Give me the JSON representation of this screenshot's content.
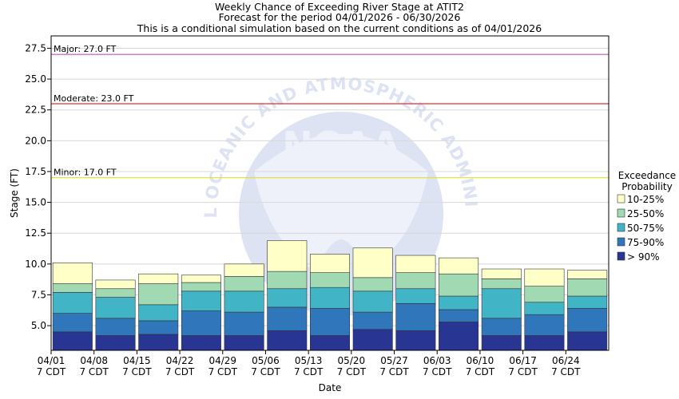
{
  "chart_data": {
    "type": "bar",
    "title_lines": [
      "Weekly Chance of Exceeding River Stage at ATIT2",
      "Forecast for the period 04/01/2026 - 06/30/2026",
      "This is a conditional simulation based on the current conditions as of 04/01/2026"
    ],
    "xlabel": "Date",
    "ylabel": "Stage (FT)",
    "ylim": [
      3.0,
      28.5
    ],
    "yticks": [
      "5.0",
      "7.5",
      "10.0",
      "12.5",
      "15.0",
      "17.5",
      "20.0",
      "22.5",
      "25.0",
      "27.5"
    ],
    "categories": [
      "04/01",
      "04/08",
      "04/15",
      "04/22",
      "04/29",
      "05/06",
      "05/13",
      "05/20",
      "05/27",
      "06/03",
      "06/10",
      "06/17",
      "06/24"
    ],
    "tick_sublabel": "7 CDT",
    "band_edges": [
      [
        4.5,
        6.0,
        7.7,
        8.4,
        10.1
      ],
      [
        4.2,
        5.6,
        7.3,
        8.0,
        8.7
      ],
      [
        4.3,
        5.4,
        6.7,
        8.4,
        9.2
      ],
      [
        4.2,
        6.2,
        7.8,
        8.5,
        9.1
      ],
      [
        4.2,
        6.1,
        7.8,
        9.0,
        10.0
      ],
      [
        4.6,
        6.5,
        8.0,
        9.4,
        11.9
      ],
      [
        4.2,
        6.4,
        8.1,
        9.3,
        10.8
      ],
      [
        4.7,
        6.1,
        7.8,
        8.9,
        11.3
      ],
      [
        4.6,
        6.8,
        8.0,
        9.3,
        10.7
      ],
      [
        5.3,
        6.3,
        7.4,
        9.2,
        10.5
      ],
      [
        4.2,
        5.6,
        8.0,
        8.8,
        9.6
      ],
      [
        4.2,
        5.9,
        6.9,
        8.2,
        9.6
      ],
      [
        4.5,
        6.4,
        7.4,
        8.8,
        9.5
      ]
    ],
    "bands": [
      {
        "name": "> 90%",
        "color": "#283593"
      },
      {
        "name": "75-90%",
        "color": "#2f76bb"
      },
      {
        "name": "50-75%",
        "color": "#41b4c5"
      },
      {
        "name": "25-50%",
        "color": "#a1d9b3"
      },
      {
        "name": "10-25%",
        "color": "#ffffc8"
      }
    ],
    "flood_levels": [
      {
        "label": "Major: 27.0 FT",
        "value": 27.0,
        "color": "#c050c0"
      },
      {
        "label": "Moderate: 23.0 FT",
        "value": 23.0,
        "color": "#e03030"
      },
      {
        "label": "Minor: 17.0 FT",
        "value": 17.0,
        "color": "#e0e030"
      }
    ],
    "legend": {
      "title_lines": [
        "Exceedance",
        "Probability"
      ],
      "placement": "right",
      "items": [
        "10-25%",
        "25-50%",
        "50-75%",
        "75-90%",
        "> 90%"
      ]
    }
  },
  "watermark_text": "NATIONAL OCEANIC AND ATMOSPHERIC ADMINISTRATION",
  "watermark_logo": "NOAA"
}
